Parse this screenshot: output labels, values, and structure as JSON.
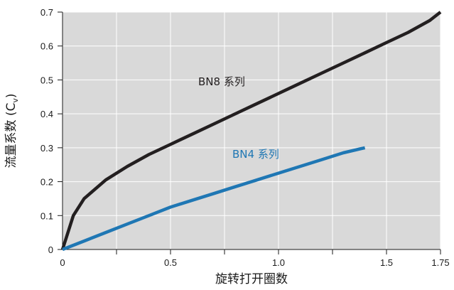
{
  "chart_data": {
    "type": "line",
    "title": "",
    "xlabel": "旋转打开圈数",
    "ylabel_main": "流量系数 (C",
    "ylabel_sub": "v",
    "ylabel_close": ")",
    "xlim": [
      0,
      1.75
    ],
    "ylim": [
      0,
      0.7
    ],
    "x_ticks": [
      0,
      0.25,
      0.5,
      0.75,
      1.0,
      1.25,
      1.5,
      1.75
    ],
    "x_tick_labels": [
      "0",
      "",
      "0.5",
      "",
      "1.0",
      "",
      "1.5",
      "1.75"
    ],
    "y_ticks": [
      0,
      0.1,
      0.2,
      0.3,
      0.4,
      0.5,
      0.6,
      0.7
    ],
    "y_tick_labels": [
      "0",
      "0.1",
      "0.2",
      "0.3",
      "0.4",
      "0.5",
      "0.6",
      "0.7"
    ],
    "grid": true,
    "background": "#d9d9d9",
    "series": [
      {
        "name": "BN8 系列",
        "color": "#231f20",
        "x": [
          0,
          0.05,
          0.1,
          0.2,
          0.3,
          0.4,
          0.5,
          0.6,
          0.7,
          0.8,
          0.9,
          1.0,
          1.1,
          1.2,
          1.3,
          1.4,
          1.5,
          1.6,
          1.7,
          1.75
        ],
        "y": [
          0,
          0.1,
          0.15,
          0.205,
          0.245,
          0.28,
          0.31,
          0.34,
          0.37,
          0.4,
          0.43,
          0.46,
          0.49,
          0.52,
          0.55,
          0.58,
          0.61,
          0.64,
          0.675,
          0.7
        ]
      },
      {
        "name": "BN4 系列",
        "color": "#1f77b4",
        "x": [
          0,
          0.1,
          0.2,
          0.3,
          0.4,
          0.5,
          0.6,
          0.7,
          0.8,
          0.9,
          1.0,
          1.1,
          1.2,
          1.3,
          1.4
        ],
        "y": [
          0,
          0.025,
          0.05,
          0.075,
          0.1,
          0.125,
          0.145,
          0.165,
          0.185,
          0.205,
          0.225,
          0.245,
          0.265,
          0.285,
          0.3
        ]
      }
    ]
  }
}
